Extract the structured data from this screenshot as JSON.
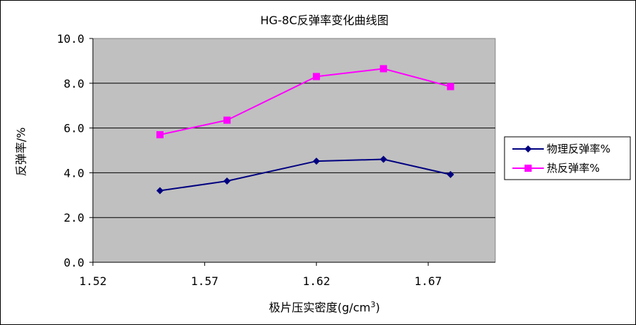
{
  "chart_data": {
    "type": "line",
    "title": "HG-8C反弹率变化曲线图",
    "xlabel": "极片压实密度(g/cm",
    "xlabel_sup": "3",
    "xlabel_suffix": ")",
    "ylabel": "反弹率/%",
    "xlim": [
      1.52,
      1.7
    ],
    "ylim": [
      0.0,
      10.0
    ],
    "x_ticks": [
      1.52,
      1.57,
      1.62,
      1.67
    ],
    "x_tick_labels": [
      "1.52",
      "1.57",
      "1.62",
      "1.67"
    ],
    "y_ticks": [
      0,
      2,
      4,
      6,
      8,
      10
    ],
    "y_tick_labels": [
      "0.0",
      "2.0",
      "4.0",
      "6.0",
      "8.0",
      "10.0"
    ],
    "grid": "horizontal",
    "legend_position": "right",
    "plot_background": "#C0C0C0",
    "series": [
      {
        "name": "物理反弹率%",
        "color": "#000080",
        "marker": "diamond",
        "x": [
          1.55,
          1.58,
          1.62,
          1.65,
          1.68
        ],
        "y": [
          3.2,
          3.63,
          4.52,
          4.6,
          3.92
        ]
      },
      {
        "name": "热反弹率%",
        "color": "#FF00FF",
        "marker": "square",
        "x": [
          1.55,
          1.58,
          1.62,
          1.65,
          1.68
        ],
        "y": [
          5.7,
          6.35,
          8.3,
          8.65,
          7.85
        ]
      }
    ]
  }
}
